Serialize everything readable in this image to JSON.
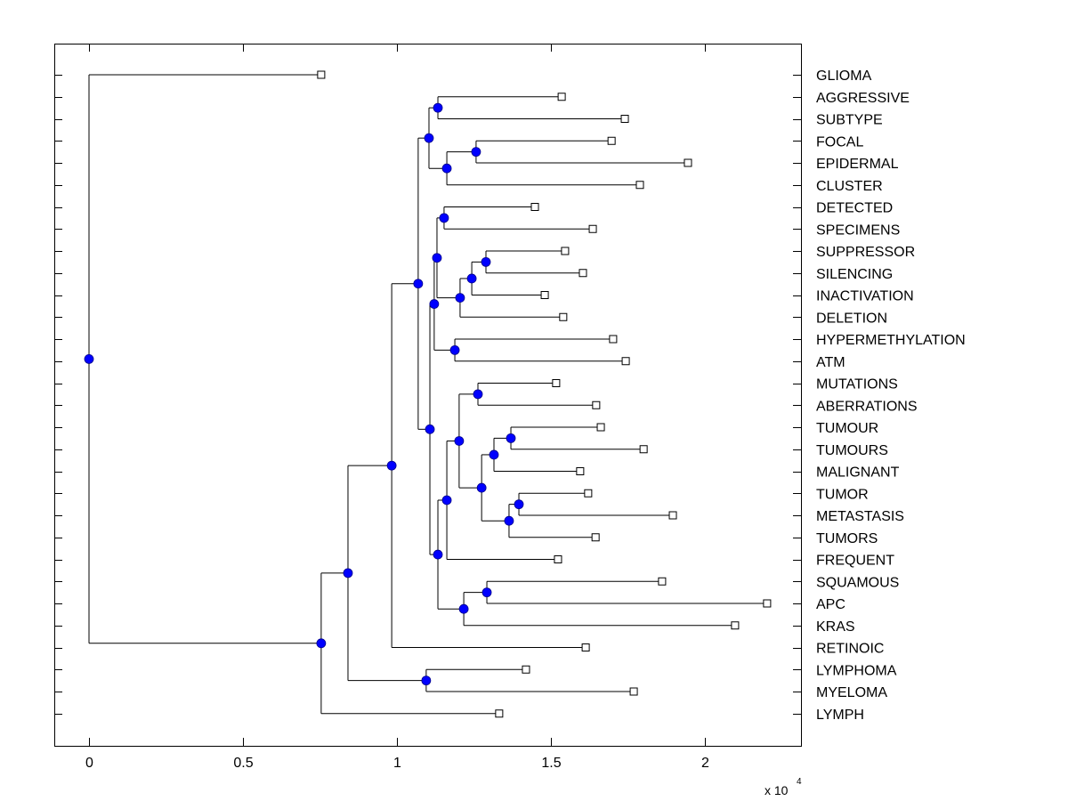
{
  "chart_data": {
    "type": "dendrogram",
    "title": "",
    "xlabel": "",
    "ylabel": "",
    "x_multiplier_label": "x 10",
    "x_multiplier_exponent": "4",
    "xlim": [
      -0.113,
      2.312
    ],
    "xticks": [
      0,
      0.5,
      1,
      1.5,
      2
    ],
    "xtick_labels": [
      "0",
      "0.5",
      "1",
      "1.5",
      "2"
    ],
    "grid": false,
    "leaf_marker": "open-square",
    "node_marker": "filled-circle",
    "node_color": "#0000ff",
    "line_color": "#000000",
    "leaves": [
      {
        "id": "L0",
        "label": "GLIOMA",
        "x": 0.754
      },
      {
        "id": "L1",
        "label": "AGGRESSIVE",
        "x": 1.535
      },
      {
        "id": "L2",
        "label": "SUBTYPE",
        "x": 1.74
      },
      {
        "id": "L3",
        "label": "FOCAL",
        "x": 1.697
      },
      {
        "id": "L4",
        "label": "EPIDERMAL",
        "x": 1.945
      },
      {
        "id": "L5",
        "label": "CLUSTER",
        "x": 1.789
      },
      {
        "id": "L6",
        "label": "DETECTED",
        "x": 1.448
      },
      {
        "id": "L7",
        "label": "SPECIMENS",
        "x": 1.636
      },
      {
        "id": "L8",
        "label": "SUPPRESSOR",
        "x": 1.546
      },
      {
        "id": "L9",
        "label": "SILENCING",
        "x": 1.604
      },
      {
        "id": "L10",
        "label": "INACTIVATION",
        "x": 1.48
      },
      {
        "id": "L11",
        "label": "DELETION",
        "x": 1.54
      },
      {
        "id": "L12",
        "label": "HYPERMETHYLATION",
        "x": 1.702
      },
      {
        "id": "L13",
        "label": "ATM",
        "x": 1.743
      },
      {
        "id": "L14",
        "label": "MUTATIONS",
        "x": 1.517
      },
      {
        "id": "L15",
        "label": "ABERRATIONS",
        "x": 1.647
      },
      {
        "id": "L16",
        "label": "TUMOUR",
        "x": 1.662
      },
      {
        "id": "L17",
        "label": "TUMOURS",
        "x": 1.801
      },
      {
        "id": "L18",
        "label": "MALIGNANT",
        "x": 1.595
      },
      {
        "id": "L19",
        "label": "TUMOR",
        "x": 1.621
      },
      {
        "id": "L20",
        "label": "METASTASIS",
        "x": 1.896
      },
      {
        "id": "L21",
        "label": "TUMORS",
        "x": 1.645
      },
      {
        "id": "L22",
        "label": "FREQUENT",
        "x": 1.523
      },
      {
        "id": "L23",
        "label": "SQUAMOUS",
        "x": 1.861
      },
      {
        "id": "L24",
        "label": "APC",
        "x": 2.202
      },
      {
        "id": "L25",
        "label": "KRAS",
        "x": 2.098
      },
      {
        "id": "L26",
        "label": "RETINOIC",
        "x": 1.613
      },
      {
        "id": "L27",
        "label": "LYMPHOMA",
        "x": 1.419
      },
      {
        "id": "L28",
        "label": "MYELOMA",
        "x": 1.769
      },
      {
        "id": "L29",
        "label": "LYMPH",
        "x": 1.332
      }
    ],
    "nodes": [
      {
        "id": "N_agg_sub",
        "x": 1.133,
        "children": [
          "L1",
          "L2"
        ]
      },
      {
        "id": "N_foc_epi",
        "x": 1.257,
        "children": [
          "L3",
          "L4"
        ]
      },
      {
        "id": "N_fe_clu",
        "x": 1.162,
        "children": [
          "N_foc_epi",
          "L5"
        ]
      },
      {
        "id": "N_top",
        "x": 1.104,
        "children": [
          "N_agg_sub",
          "N_fe_clu"
        ]
      },
      {
        "id": "N_det_spec",
        "x": 1.153,
        "children": [
          "L6",
          "L7"
        ]
      },
      {
        "id": "N_sup_sil",
        "x": 1.289,
        "children": [
          "L8",
          "L9"
        ]
      },
      {
        "id": "N_ss_inact",
        "x": 1.243,
        "children": [
          "N_sup_sil",
          "L10"
        ]
      },
      {
        "id": "N_ssi_del",
        "x": 1.205,
        "children": [
          "N_ss_inact",
          "L11"
        ]
      },
      {
        "id": "N_ds_sup",
        "x": 1.13,
        "children": [
          "N_det_spec",
          "N_ssi_del"
        ]
      },
      {
        "id": "N_hyp_atm",
        "x": 1.188,
        "children": [
          "L12",
          "L13"
        ]
      },
      {
        "id": "N_mid_a",
        "x": 1.121,
        "children": [
          "N_ds_sup",
          "N_hyp_atm"
        ]
      },
      {
        "id": "N_mut_abe",
        "x": 1.263,
        "children": [
          "L14",
          "L15"
        ]
      },
      {
        "id": "N_tum_tums",
        "x": 1.37,
        "children": [
          "L16",
          "L17"
        ]
      },
      {
        "id": "N_tt_mal",
        "x": 1.315,
        "children": [
          "N_tum_tums",
          "L18"
        ]
      },
      {
        "id": "N_tor_met",
        "x": 1.396,
        "children": [
          "L19",
          "L20"
        ]
      },
      {
        "id": "N_tm_tors",
        "x": 1.364,
        "children": [
          "N_tor_met",
          "L21"
        ]
      },
      {
        "id": "N_tum_grp",
        "x": 1.275,
        "children": [
          "N_tt_mal",
          "N_tm_tors"
        ]
      },
      {
        "id": "N_ma_tum",
        "x": 1.202,
        "children": [
          "N_mut_abe",
          "N_tum_grp"
        ]
      },
      {
        "id": "N_ma_freq",
        "x": 1.162,
        "children": [
          "N_ma_tum",
          "L22"
        ]
      },
      {
        "id": "N_sq_apc",
        "x": 1.292,
        "children": [
          "L23",
          "L24"
        ]
      },
      {
        "id": "N_sa_kras",
        "x": 1.217,
        "children": [
          "N_sq_apc",
          "L25"
        ]
      },
      {
        "id": "N_mf_ska",
        "x": 1.133,
        "children": [
          "N_ma_freq",
          "N_sa_kras"
        ]
      },
      {
        "id": "N_mid_b",
        "x": 1.107,
        "children": [
          "N_mid_a",
          "N_mf_ska"
        ]
      },
      {
        "id": "N_big",
        "x": 1.069,
        "children": [
          "N_top",
          "N_mid_b"
        ]
      },
      {
        "id": "N_big_ret",
        "x": 0.983,
        "children": [
          "N_big",
          "L26"
        ]
      },
      {
        "id": "N_lym_mye",
        "x": 1.095,
        "children": [
          "L27",
          "L28"
        ]
      },
      {
        "id": "N_br_lm",
        "x": 0.841,
        "children": [
          "N_big_ret",
          "N_lym_mye"
        ]
      },
      {
        "id": "N_all_lymph",
        "x": 0.754,
        "children": [
          "N_br_lm",
          "L29"
        ]
      },
      {
        "id": "N_root",
        "x": 0.0,
        "children": [
          "L0",
          "N_all_lymph"
        ]
      }
    ],
    "root": "N_root"
  }
}
